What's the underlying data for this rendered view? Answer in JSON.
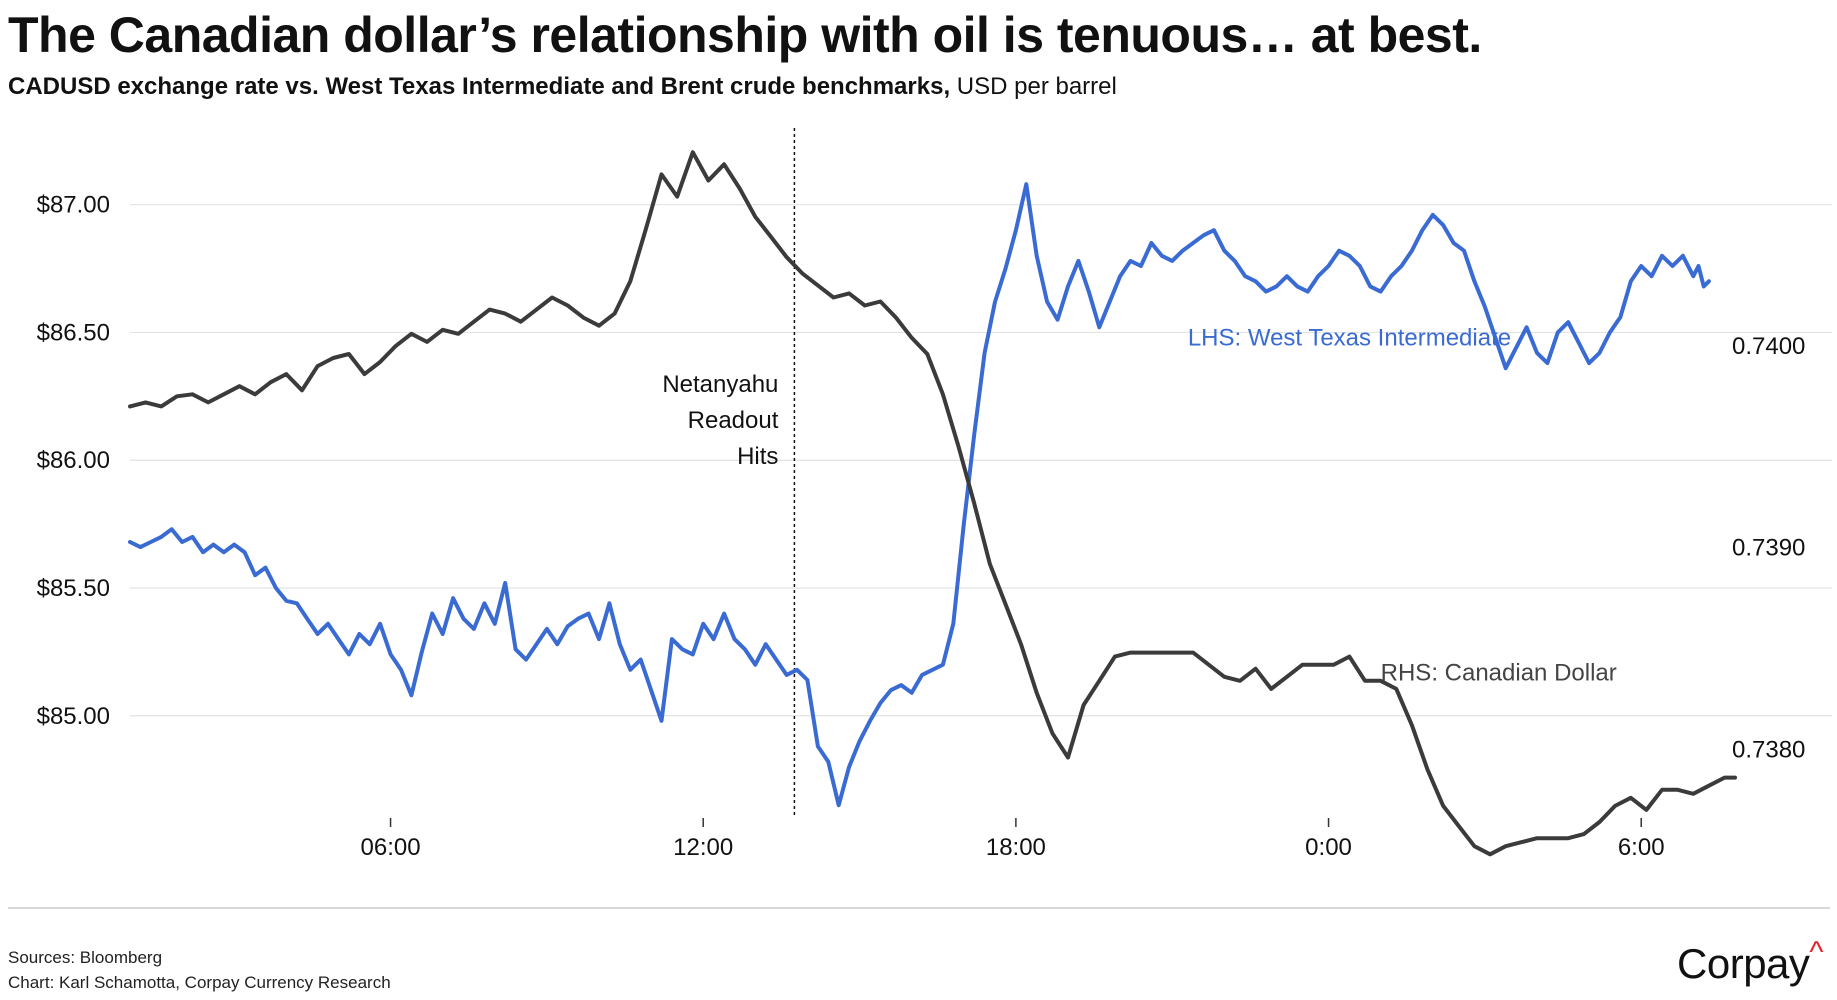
{
  "title": "The Canadian dollar’s relationship with oil is tenuous… at best.",
  "subtitle_bold": "CADUSD exchange rate vs. West Texas Intermediate and Brent crude benchmarks,",
  "subtitle_normal": " USD per barrel",
  "footer": {
    "sources": "Sources: Bloomberg",
    "credit": "Chart: Karl Schamotta, Corpay Currency Research"
  },
  "logo": {
    "text": "Corpay",
    "caret": "^"
  },
  "chart_data": {
    "type": "line",
    "title": "The Canadian dollar’s relationship with oil is tenuous… at best.",
    "subtitle": "CADUSD exchange rate vs. West Texas Intermediate and Brent crude benchmarks, USD per barrel",
    "x_unit": "hours from start of window (start ≈ 01:00)",
    "xlim": [
      1,
      31.8
    ],
    "x_ticks": [
      {
        "x": 6,
        "label": "06:00"
      },
      {
        "x": 12,
        "label": "12:00"
      },
      {
        "x": 18,
        "label": "18:00"
      },
      {
        "x": 24,
        "label": "0:00"
      },
      {
        "x": 30,
        "label": "6:00"
      }
    ],
    "y_left": {
      "lim": [
        84.6,
        87.3
      ],
      "ticks": [
        85.0,
        85.5,
        86.0,
        86.5,
        87.0
      ],
      "tick_labels": [
        "$85.00",
        "$85.50",
        "$86.00",
        "$86.50",
        "$87.00"
      ]
    },
    "y_right": {
      "lim": [
        0.73766,
        0.74108
      ],
      "ticks": [
        0.738,
        0.739,
        0.74
      ],
      "tick_labels": [
        "0.7380",
        "0.7390",
        "0.7400"
      ]
    },
    "grid": "horizontal",
    "annotation": {
      "x": 13.75,
      "lines": [
        "Netanyahu",
        "Readout",
        "Hits"
      ]
    },
    "series": [
      {
        "name": "LHS: West Texas Intermediate",
        "axis": "left",
        "color": "#3a6bd2",
        "points": [
          [
            1.0,
            85.68
          ],
          [
            1.2,
            85.66
          ],
          [
            1.4,
            85.68
          ],
          [
            1.6,
            85.7
          ],
          [
            1.8,
            85.73
          ],
          [
            2.0,
            85.68
          ],
          [
            2.2,
            85.7
          ],
          [
            2.4,
            85.64
          ],
          [
            2.6,
            85.67
          ],
          [
            2.8,
            85.64
          ],
          [
            3.0,
            85.67
          ],
          [
            3.2,
            85.64
          ],
          [
            3.4,
            85.55
          ],
          [
            3.6,
            85.58
          ],
          [
            3.8,
            85.5
          ],
          [
            4.0,
            85.45
          ],
          [
            4.2,
            85.44
          ],
          [
            4.4,
            85.38
          ],
          [
            4.6,
            85.32
          ],
          [
            4.8,
            85.36
          ],
          [
            5.0,
            85.3
          ],
          [
            5.2,
            85.24
          ],
          [
            5.4,
            85.32
          ],
          [
            5.6,
            85.28
          ],
          [
            5.8,
            85.36
          ],
          [
            6.0,
            85.24
          ],
          [
            6.2,
            85.18
          ],
          [
            6.4,
            85.08
          ],
          [
            6.6,
            85.25
          ],
          [
            6.8,
            85.4
          ],
          [
            7.0,
            85.32
          ],
          [
            7.2,
            85.46
          ],
          [
            7.4,
            85.38
          ],
          [
            7.6,
            85.34
          ],
          [
            7.8,
            85.44
          ],
          [
            8.0,
            85.36
          ],
          [
            8.2,
            85.52
          ],
          [
            8.4,
            85.26
          ],
          [
            8.6,
            85.22
          ],
          [
            8.8,
            85.28
          ],
          [
            9.0,
            85.34
          ],
          [
            9.2,
            85.28
          ],
          [
            9.4,
            85.35
          ],
          [
            9.6,
            85.38
          ],
          [
            9.8,
            85.4
          ],
          [
            10.0,
            85.3
          ],
          [
            10.2,
            85.44
          ],
          [
            10.4,
            85.28
          ],
          [
            10.6,
            85.18
          ],
          [
            10.8,
            85.22
          ],
          [
            11.0,
            85.1
          ],
          [
            11.2,
            84.98
          ],
          [
            11.4,
            85.3
          ],
          [
            11.6,
            85.26
          ],
          [
            11.8,
            85.24
          ],
          [
            12.0,
            85.36
          ],
          [
            12.2,
            85.3
          ],
          [
            12.4,
            85.4
          ],
          [
            12.6,
            85.3
          ],
          [
            12.8,
            85.26
          ],
          [
            13.0,
            85.2
          ],
          [
            13.2,
            85.28
          ],
          [
            13.4,
            85.22
          ],
          [
            13.6,
            85.16
          ],
          [
            13.8,
            85.18
          ],
          [
            14.0,
            85.14
          ],
          [
            14.2,
            84.88
          ],
          [
            14.4,
            84.82
          ],
          [
            14.6,
            84.65
          ],
          [
            14.8,
            84.8
          ],
          [
            15.0,
            84.9
          ],
          [
            15.2,
            84.98
          ],
          [
            15.4,
            85.05
          ],
          [
            15.6,
            85.1
          ],
          [
            15.8,
            85.12
          ],
          [
            16.0,
            85.09
          ],
          [
            16.2,
            85.16
          ],
          [
            16.4,
            85.18
          ],
          [
            16.6,
            85.2
          ],
          [
            16.8,
            85.36
          ],
          [
            17.0,
            85.75
          ],
          [
            17.2,
            86.1
          ],
          [
            17.4,
            86.42
          ],
          [
            17.6,
            86.62
          ],
          [
            17.8,
            86.75
          ],
          [
            18.0,
            86.9
          ],
          [
            18.2,
            87.08
          ],
          [
            18.4,
            86.8
          ],
          [
            18.6,
            86.62
          ],
          [
            18.8,
            86.55
          ],
          [
            19.0,
            86.68
          ],
          [
            19.2,
            86.78
          ],
          [
            19.4,
            86.66
          ],
          [
            19.6,
            86.52
          ],
          [
            19.8,
            86.62
          ],
          [
            20.0,
            86.72
          ],
          [
            20.2,
            86.78
          ],
          [
            20.4,
            86.76
          ],
          [
            20.6,
            86.85
          ],
          [
            20.8,
            86.8
          ],
          [
            21.0,
            86.78
          ],
          [
            21.2,
            86.82
          ],
          [
            21.4,
            86.85
          ],
          [
            21.6,
            86.88
          ],
          [
            21.8,
            86.9
          ],
          [
            22.0,
            86.82
          ],
          [
            22.2,
            86.78
          ],
          [
            22.4,
            86.72
          ],
          [
            22.6,
            86.7
          ],
          [
            22.8,
            86.66
          ],
          [
            23.0,
            86.68
          ],
          [
            23.2,
            86.72
          ],
          [
            23.4,
            86.68
          ],
          [
            23.6,
            86.66
          ],
          [
            23.8,
            86.72
          ],
          [
            24.0,
            86.76
          ],
          [
            24.2,
            86.82
          ],
          [
            24.4,
            86.8
          ],
          [
            24.6,
            86.76
          ],
          [
            24.8,
            86.68
          ],
          [
            25.0,
            86.66
          ],
          [
            25.2,
            86.72
          ],
          [
            25.4,
            86.76
          ],
          [
            25.6,
            86.82
          ],
          [
            25.8,
            86.9
          ],
          [
            26.0,
            86.96
          ],
          [
            26.2,
            86.92
          ],
          [
            26.4,
            86.85
          ],
          [
            26.6,
            86.82
          ],
          [
            26.8,
            86.7
          ],
          [
            27.0,
            86.6
          ],
          [
            27.2,
            86.48
          ],
          [
            27.4,
            86.36
          ],
          [
            27.6,
            86.44
          ],
          [
            27.8,
            86.52
          ],
          [
            28.0,
            86.42
          ],
          [
            28.2,
            86.38
          ],
          [
            28.4,
            86.5
          ],
          [
            28.6,
            86.54
          ],
          [
            28.8,
            86.46
          ],
          [
            29.0,
            86.38
          ],
          [
            29.2,
            86.42
          ],
          [
            29.4,
            86.5
          ],
          [
            29.6,
            86.56
          ],
          [
            29.8,
            86.7
          ],
          [
            30.0,
            86.76
          ],
          [
            30.2,
            86.72
          ],
          [
            30.4,
            86.8
          ],
          [
            30.6,
            86.76
          ],
          [
            30.8,
            86.8
          ],
          [
            31.0,
            86.72
          ],
          [
            31.1,
            86.76
          ],
          [
            31.2,
            86.68
          ],
          [
            31.3,
            86.7
          ]
        ]
      },
      {
        "name": "RHS: Canadian Dollar",
        "axis": "right",
        "color": "#3b3b3b",
        "points": [
          [
            1.0,
            0.7397
          ],
          [
            1.3,
            0.73972
          ],
          [
            1.6,
            0.7397
          ],
          [
            1.9,
            0.73975
          ],
          [
            2.2,
            0.73976
          ],
          [
            2.5,
            0.73972
          ],
          [
            2.8,
            0.73976
          ],
          [
            3.1,
            0.7398
          ],
          [
            3.4,
            0.73976
          ],
          [
            3.7,
            0.73982
          ],
          [
            4.0,
            0.73986
          ],
          [
            4.3,
            0.73978
          ],
          [
            4.6,
            0.7399
          ],
          [
            4.9,
            0.73994
          ],
          [
            5.2,
            0.73996
          ],
          [
            5.5,
            0.73986
          ],
          [
            5.8,
            0.73992
          ],
          [
            6.1,
            0.74
          ],
          [
            6.4,
            0.74006
          ],
          [
            6.7,
            0.74002
          ],
          [
            7.0,
            0.74008
          ],
          [
            7.3,
            0.74006
          ],
          [
            7.6,
            0.74012
          ],
          [
            7.9,
            0.74018
          ],
          [
            8.2,
            0.74016
          ],
          [
            8.5,
            0.74012
          ],
          [
            8.8,
            0.74018
          ],
          [
            9.1,
            0.74024
          ],
          [
            9.4,
            0.7402
          ],
          [
            9.7,
            0.74014
          ],
          [
            10.0,
            0.7401
          ],
          [
            10.3,
            0.74016
          ],
          [
            10.6,
            0.74032
          ],
          [
            10.9,
            0.74058
          ],
          [
            11.2,
            0.74085
          ],
          [
            11.5,
            0.74074
          ],
          [
            11.8,
            0.74096
          ],
          [
            12.1,
            0.74082
          ],
          [
            12.4,
            0.7409
          ],
          [
            12.7,
            0.74078
          ],
          [
            13.0,
            0.74064
          ],
          [
            13.3,
            0.74054
          ],
          [
            13.6,
            0.74044
          ],
          [
            13.9,
            0.74036
          ],
          [
            14.2,
            0.7403
          ],
          [
            14.5,
            0.74024
          ],
          [
            14.8,
            0.74026
          ],
          [
            15.1,
            0.7402
          ],
          [
            15.4,
            0.74022
          ],
          [
            15.7,
            0.74014
          ],
          [
            16.0,
            0.74004
          ],
          [
            16.3,
            0.73996
          ],
          [
            16.6,
            0.73976
          ],
          [
            16.9,
            0.7395
          ],
          [
            17.2,
            0.73922
          ],
          [
            17.5,
            0.73892
          ],
          [
            17.8,
            0.73872
          ],
          [
            18.1,
            0.73852
          ],
          [
            18.4,
            0.73828
          ],
          [
            18.7,
            0.73808
          ],
          [
            19.0,
            0.73796
          ],
          [
            19.3,
            0.73822
          ],
          [
            19.6,
            0.73834
          ],
          [
            19.9,
            0.73846
          ],
          [
            20.2,
            0.73848
          ],
          [
            20.5,
            0.73848
          ],
          [
            20.8,
            0.73848
          ],
          [
            21.1,
            0.73848
          ],
          [
            21.4,
            0.73848
          ],
          [
            21.7,
            0.73842
          ],
          [
            22.0,
            0.73836
          ],
          [
            22.3,
            0.73834
          ],
          [
            22.6,
            0.7384
          ],
          [
            22.9,
            0.7383
          ],
          [
            23.2,
            0.73836
          ],
          [
            23.5,
            0.73842
          ],
          [
            23.8,
            0.73842
          ],
          [
            24.1,
            0.73842
          ],
          [
            24.4,
            0.73846
          ],
          [
            24.7,
            0.73834
          ],
          [
            25.0,
            0.73834
          ],
          [
            25.3,
            0.7383
          ],
          [
            25.6,
            0.73812
          ],
          [
            25.9,
            0.7379
          ],
          [
            26.2,
            0.73772
          ],
          [
            26.5,
            0.73762
          ],
          [
            26.8,
            0.73752
          ],
          [
            27.1,
            0.73748
          ],
          [
            27.4,
            0.73752
          ],
          [
            27.7,
            0.73754
          ],
          [
            28.0,
            0.73756
          ],
          [
            28.3,
            0.73756
          ],
          [
            28.6,
            0.73756
          ],
          [
            28.9,
            0.73758
          ],
          [
            29.2,
            0.73764
          ],
          [
            29.5,
            0.73772
          ],
          [
            29.8,
            0.73776
          ],
          [
            30.1,
            0.7377
          ],
          [
            30.4,
            0.7378
          ],
          [
            30.7,
            0.7378
          ],
          [
            31.0,
            0.73778
          ],
          [
            31.3,
            0.73782
          ],
          [
            31.6,
            0.73786
          ],
          [
            31.8,
            0.73786
          ]
        ]
      }
    ]
  }
}
